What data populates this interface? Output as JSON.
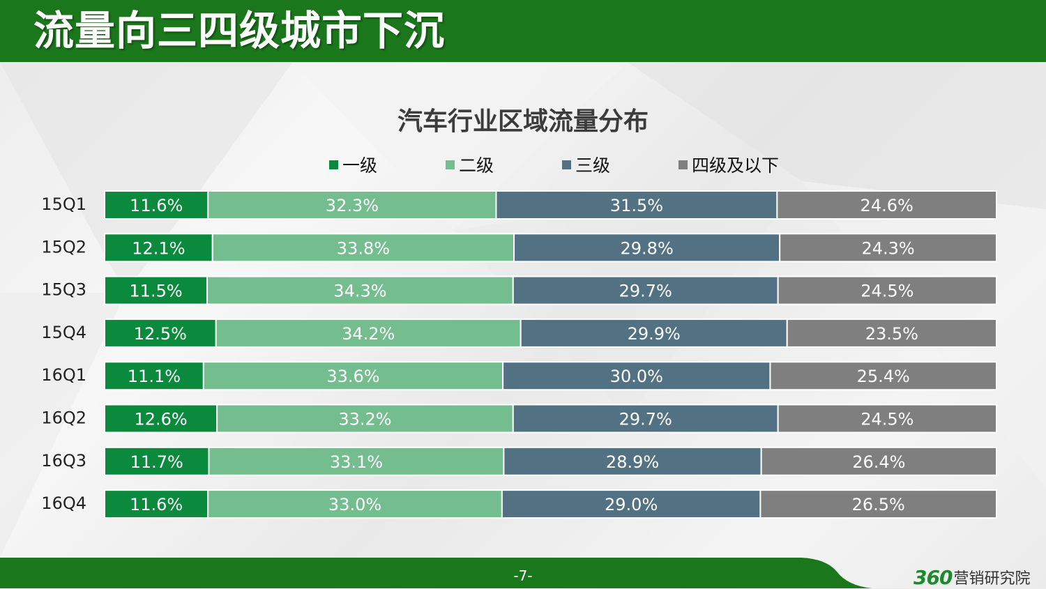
{
  "header": {
    "title": "流量向三四级城市下沉"
  },
  "footer": {
    "page_number": "-7-",
    "brand_number": "360",
    "brand_text": "营销研究院"
  },
  "colors": {
    "tier1": "#0b8a3e",
    "tier2": "#74bd8e",
    "tier3": "#527284",
    "tier4": "#7f7f7f",
    "header": "#1b771b"
  },
  "chart_data": {
    "type": "bar",
    "orientation": "horizontal",
    "stacked": true,
    "normalized_percent": true,
    "title": "汽车行业区域流量分布",
    "legend_position": "top",
    "grid": false,
    "categories": [
      "15Q1",
      "15Q2",
      "15Q3",
      "15Q4",
      "16Q1",
      "16Q2",
      "16Q3",
      "16Q4"
    ],
    "series": [
      {
        "name": "一级",
        "color": "#0b8a3e",
        "values": [
          11.6,
          12.1,
          11.5,
          12.5,
          11.1,
          12.6,
          11.7,
          11.6
        ],
        "labels": [
          "11.6%",
          "12.1%",
          "11.5%",
          "12.5%",
          "11.1%",
          "12.6%",
          "11.7%",
          "11.6%"
        ]
      },
      {
        "name": "二级",
        "color": "#74bd8e",
        "values": [
          32.3,
          33.8,
          34.3,
          34.2,
          33.6,
          33.2,
          33.1,
          33.0
        ],
        "labels": [
          "32.3%",
          "33.8%",
          "34.3%",
          "34.2%",
          "33.6%",
          "33.2%",
          "33.1%",
          "33.0%"
        ]
      },
      {
        "name": "三级",
        "color": "#527284",
        "values": [
          31.5,
          29.8,
          29.7,
          29.9,
          30.0,
          29.7,
          28.9,
          29.0
        ],
        "labels": [
          "31.5%",
          "29.8%",
          "29.7%",
          "29.9%",
          "30.0%",
          "29.7%",
          "28.9%",
          "29.0%"
        ]
      },
      {
        "name": "四级及以下",
        "color": "#7f7f7f",
        "values": [
          24.6,
          24.3,
          24.5,
          23.5,
          25.4,
          24.5,
          26.4,
          26.5
        ],
        "labels": [
          "24.6%",
          "24.3%",
          "24.5%",
          "23.5%",
          "25.4%",
          "24.5%",
          "26.4%",
          "26.5%"
        ]
      }
    ]
  }
}
